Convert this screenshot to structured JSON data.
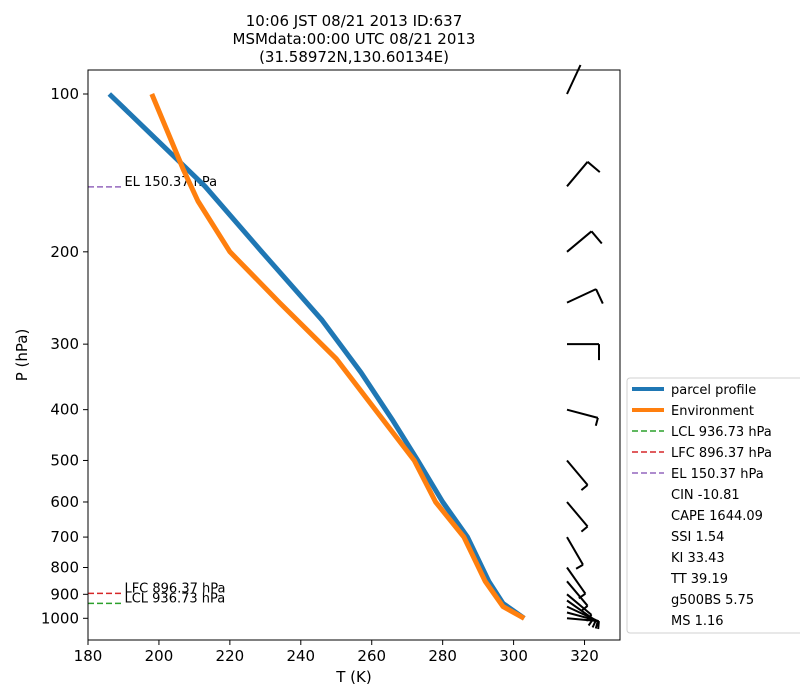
{
  "titles": [
    "10:06 JST 08/21 2013  ID:637",
    "MSMdata:00:00 UTC 08/21 2013",
    "(31.58972N,130.60134E)"
  ],
  "chart_data": {
    "type": "line",
    "xlabel": "T (K)",
    "ylabel": "P (hPa)",
    "xlim": [
      180,
      330
    ],
    "ylim": [
      1100,
      90
    ],
    "yscale": "log",
    "xticks": [
      180,
      200,
      220,
      240,
      260,
      280,
      300,
      320
    ],
    "yticks": [
      100,
      200,
      300,
      400,
      500,
      600,
      700,
      800,
      900,
      1000
    ],
    "series": [
      {
        "name": "parcel profile",
        "color": "#1f77b4",
        "points": [
          [
            303,
            1000
          ],
          [
            297,
            936.73
          ],
          [
            293,
            850
          ],
          [
            287,
            700
          ],
          [
            280,
            600
          ],
          [
            273,
            500
          ],
          [
            266,
            420
          ],
          [
            257,
            340
          ],
          [
            246,
            270
          ],
          [
            229,
            200
          ],
          [
            213,
            150
          ],
          [
            186,
            100
          ]
        ]
      },
      {
        "name": "Environment",
        "color": "#ff7f0e",
        "points": [
          [
            303,
            1000
          ],
          [
            297,
            950
          ],
          [
            292,
            850
          ],
          [
            286,
            700
          ],
          [
            278,
            600
          ],
          [
            272,
            500
          ],
          [
            261,
            400
          ],
          [
            250,
            320
          ],
          [
            234,
            250
          ],
          [
            220,
            200
          ],
          [
            211,
            160
          ],
          [
            207,
            140
          ],
          [
            198,
            100
          ]
        ]
      }
    ],
    "levels": [
      {
        "name": "LCL 936.73 hPa",
        "label": "LCL 936.73 hPa",
        "pressure": 936.73,
        "color": "#2ca02c"
      },
      {
        "name": "LFC 896.37 hPa",
        "label": "LFC 896.37 hPa",
        "pressure": 896.37,
        "color": "#d62728"
      },
      {
        "name": "EL 150.37 hPa",
        "label": "EL 150.37 hPa",
        "pressure": 150.37,
        "color": "#9467bd"
      }
    ],
    "wind_barbs": [
      {
        "pressure": 100,
        "dir": 25,
        "speed": 0
      },
      {
        "pressure": 150,
        "dir": 40,
        "speed": 10
      },
      {
        "pressure": 200,
        "dir": 50,
        "speed": 10
      },
      {
        "pressure": 250,
        "dir": 65,
        "speed": 10
      },
      {
        "pressure": 300,
        "dir": 90,
        "speed": 10
      },
      {
        "pressure": 400,
        "dir": 105,
        "speed": 5
      },
      {
        "pressure": 500,
        "dir": 140,
        "speed": 5
      },
      {
        "pressure": 600,
        "dir": 140,
        "speed": 5
      },
      {
        "pressure": 700,
        "dir": 150,
        "speed": 5
      },
      {
        "pressure": 800,
        "dir": 145,
        "speed": 5
      },
      {
        "pressure": 850,
        "dir": 140,
        "speed": 5
      },
      {
        "pressure": 900,
        "dir": 130,
        "speed": 5
      },
      {
        "pressure": 925,
        "dir": 125,
        "speed": 5
      },
      {
        "pressure": 950,
        "dir": 115,
        "speed": 5
      },
      {
        "pressure": 975,
        "dir": 105,
        "speed": 5
      },
      {
        "pressure": 1000,
        "dir": 95,
        "speed": 5
      }
    ],
    "legend_position": "right",
    "legend_entries": [
      {
        "label": "parcel profile",
        "kind": "line",
        "color": "#1f77b4"
      },
      {
        "label": "Environment",
        "kind": "line",
        "color": "#ff7f0e"
      },
      {
        "label": "LCL 936.73 hPa",
        "kind": "dash",
        "color": "#2ca02c"
      },
      {
        "label": "LFC 896.37 hPa",
        "kind": "dash",
        "color": "#d62728"
      },
      {
        "label": "EL 150.37 hPa",
        "kind": "dash",
        "color": "#9467bd"
      },
      {
        "label": "CIN -10.81",
        "kind": "none"
      },
      {
        "label": "CAPE 1644.09",
        "kind": "none"
      },
      {
        "label": "SSI 1.54",
        "kind": "none"
      },
      {
        "label": "KI 33.43",
        "kind": "none"
      },
      {
        "label": "TT 39.19",
        "kind": "none"
      },
      {
        "label": "g500BS 5.75",
        "kind": "none"
      },
      {
        "label": "MS 1.16",
        "kind": "none"
      }
    ]
  }
}
